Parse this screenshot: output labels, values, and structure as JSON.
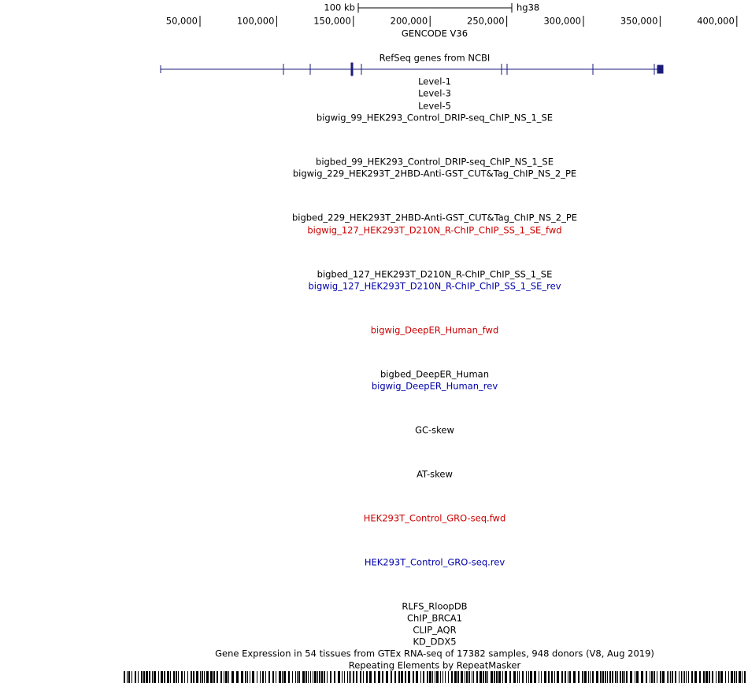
{
  "ruler": {
    "scale_label": "100 kb",
    "assembly": "hg38",
    "ticks": [
      "50,000",
      "100,000",
      "150,000",
      "200,000",
      "250,000",
      "300,000",
      "350,000",
      "400,000"
    ]
  },
  "tracks": [
    {
      "label": "GENCODE V36",
      "color": "#000000"
    },
    {
      "label": "RefSeq genes from NCBI",
      "color": "#000000"
    },
    {
      "label": "Level-1",
      "color": "#000000"
    },
    {
      "label": "Level-3",
      "color": "#000000"
    },
    {
      "label": "Level-5",
      "color": "#000000"
    },
    {
      "label": "bigwig_99_HEK293_Control_DRIP-seq_ChIP_NS_1_SE",
      "color": "#000000"
    },
    {
      "label": "bigbed_99_HEK293_Control_DRIP-seq_ChIP_NS_1_SE",
      "color": "#000000"
    },
    {
      "label": "bigwig_229_HEK293T_2HBD-Anti-GST_CUT&Tag_ChIP_NS_2_PE",
      "color": "#000000"
    },
    {
      "label": "bigbed_229_HEK293T_2HBD-Anti-GST_CUT&Tag_ChIP_NS_2_PE",
      "color": "#000000"
    },
    {
      "label": "bigwig_127_HEK293T_D210N_R-ChIP_ChIP_SS_1_SE_fwd",
      "color": "#cc0000"
    },
    {
      "label": "bigbed_127_HEK293T_D210N_R-ChIP_ChIP_SS_1_SE",
      "color": "#000000"
    },
    {
      "label": "bigwig_127_HEK293T_D210N_R-ChIP_ChIP_SS_1_SE_rev",
      "color": "#0000aa"
    },
    {
      "label": "bigwig_DeepER_Human_fwd",
      "color": "#cc0000"
    },
    {
      "label": "bigbed_DeepER_Human",
      "color": "#000000"
    },
    {
      "label": "bigwig_DeepER_Human_rev",
      "color": "#0000aa"
    },
    {
      "label": "GC-skew",
      "color": "#000000"
    },
    {
      "label": "AT-skew",
      "color": "#000000"
    },
    {
      "label": "HEK293T_Control_GRO-seq.fwd",
      "color": "#cc0000"
    },
    {
      "label": "HEK293T_Control_GRO-seq.rev",
      "color": "#0000aa"
    },
    {
      "label": "RLFS_RloopDB",
      "color": "#000000"
    },
    {
      "label": "ChIP_BRCA1",
      "color": "#000000"
    },
    {
      "label": "CLIP_AQR",
      "color": "#000000"
    },
    {
      "label": "KD_DDX5",
      "color": "#000000"
    },
    {
      "label": "Gene Expression in 54 tissues from GTEx RNA-seq of 17382 samples, 948 donors (V8, Aug 2019)",
      "color": "#000000"
    },
    {
      "label": "Repeating Elements by RepeatMasker",
      "color": "#000000"
    }
  ]
}
